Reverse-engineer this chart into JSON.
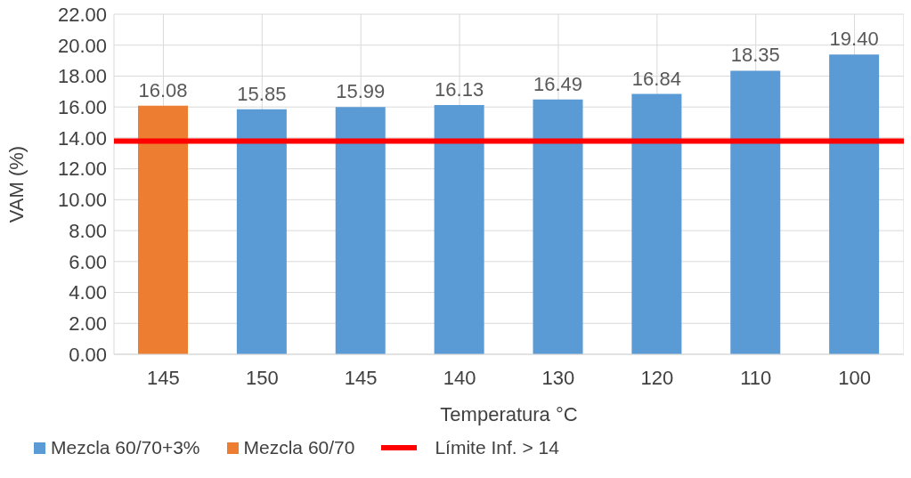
{
  "chart_data": {
    "type": "bar",
    "xlabel": "Temperatura °C",
    "ylabel": "VAM (%)",
    "categories": [
      "145",
      "150",
      "145",
      "140",
      "130",
      "120",
      "110",
      "100"
    ],
    "series": [
      {
        "name": "Mezcla 60/70+3%",
        "color": "#5b9bd5",
        "values": [
          null,
          15.85,
          15.99,
          16.13,
          16.49,
          16.84,
          18.35,
          19.4
        ],
        "value_labels": [
          null,
          "15.85",
          "15.99",
          "16.13",
          "16.49",
          "16.84",
          "18.35",
          "19.40"
        ]
      },
      {
        "name": "Mezcla 60/70",
        "color": "#ed7d31",
        "values": [
          16.08,
          null,
          null,
          null,
          null,
          null,
          null,
          null
        ],
        "value_labels": [
          "16.08",
          null,
          null,
          null,
          null,
          null,
          null,
          null
        ]
      }
    ],
    "stacked": true,
    "grid": true,
    "legend": "bottom",
    "ylim": [
      0,
      22
    ],
    "yticks": [
      {
        "value": 0,
        "label": "0.00"
      },
      {
        "value": 2,
        "label": "2.00"
      },
      {
        "value": 4,
        "label": "4.00"
      },
      {
        "value": 6,
        "label": "6.00"
      },
      {
        "value": 8,
        "label": "8.00"
      },
      {
        "value": 10,
        "label": "10.00"
      },
      {
        "value": 12,
        "label": "12.00"
      },
      {
        "value": 14,
        "label": "14.00"
      },
      {
        "value": 16,
        "label": "16.00"
      },
      {
        "value": 18,
        "label": "18.00"
      },
      {
        "value": 20,
        "label": "20.00"
      },
      {
        "value": 22,
        "label": "22.00"
      }
    ],
    "ref_lines": [
      {
        "axis": "y",
        "value": 13.8,
        "label": "Límite Inf. > 14",
        "color": "#ff0000"
      }
    ]
  }
}
